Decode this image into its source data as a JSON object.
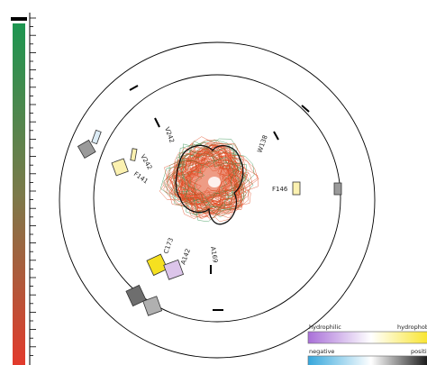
{
  "colors": {
    "gradient_top": "#1d9651",
    "gradient_mid": "#7b7a4a",
    "gradient_bottom": "#e23a2c",
    "ring": "#000000",
    "mark": "#000000",
    "hydrophilic": "#a970d8",
    "hydrophobic": "#f8e21a",
    "negative": "#36a7dc",
    "positive": "#000000",
    "cloud_red": "#e04a20",
    "cloud_green": "#2d8f4a",
    "box_yellow_bright": "#f5e020",
    "box_yellow_pale": "#fbf1b0",
    "box_purple_pale": "#dcc5ea",
    "box_gray_dark": "#6e6e6e",
    "box_gray_mid": "#9a9a9a",
    "box_gray_light": "#c8c8c8",
    "box_blue_pale": "#dcecf6"
  },
  "residues": {
    "v242_top": "V242",
    "w138": "W138",
    "v242_mid": "V242",
    "f141": "F141",
    "f146": "F146",
    "c173": "C173",
    "a142": "A142",
    "a169": "A169"
  },
  "key": {
    "hydrophilic_label": "hydrophilic",
    "hydrophobic_label": "hydrophobic",
    "negative_label": "negative",
    "positive_label": "positive"
  }
}
